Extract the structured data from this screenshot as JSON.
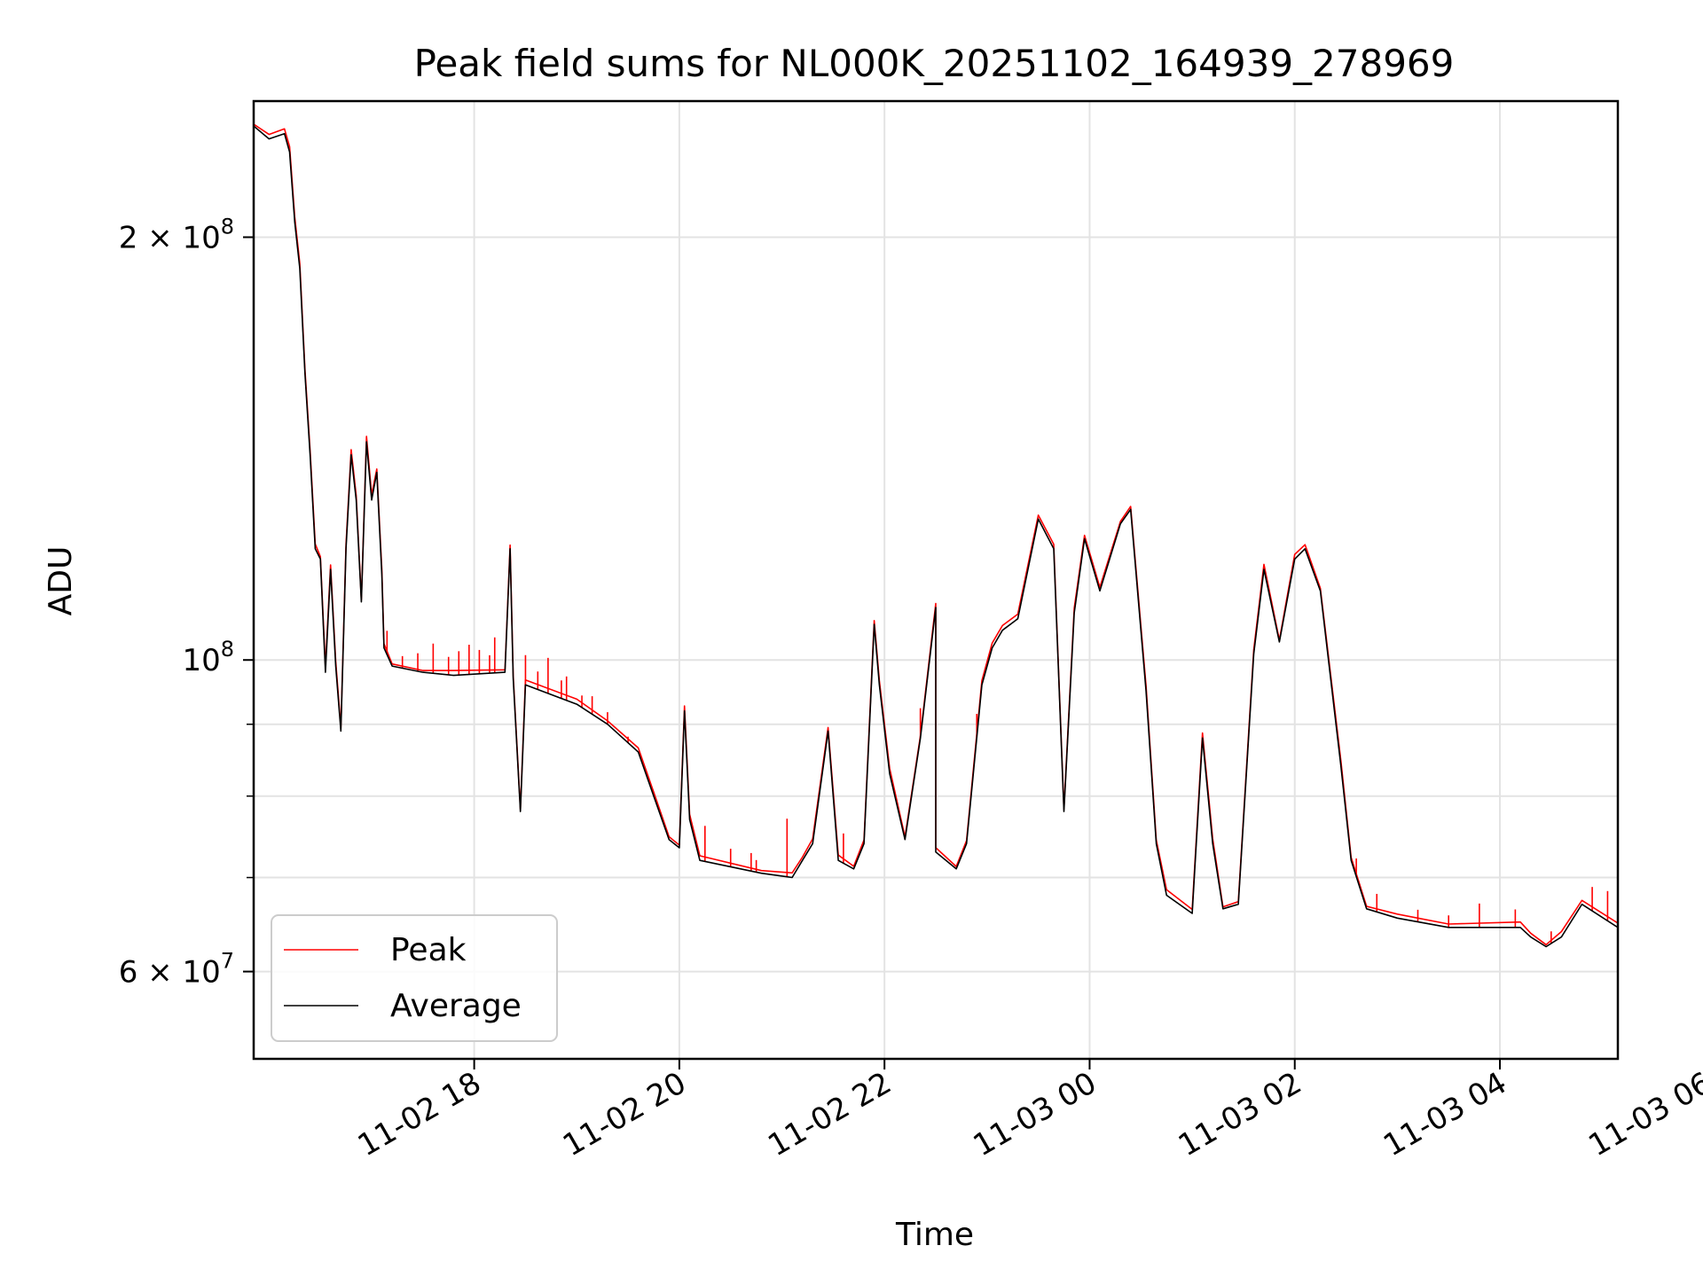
{
  "chart_data": {
    "type": "line",
    "title": "Peak field sums for NL000K_20251102_164939_278969",
    "xlabel": "Time",
    "ylabel": "ADU",
    "yscale": "log",
    "xlim": [
      -1.15,
      12.15
    ],
    "ylim": [
      52000000,
      250000000
    ],
    "x_unit": "hours since 11-02 17:00",
    "grid": true,
    "legend_position": "lower-left",
    "x_ticks": [
      {
        "value": 1,
        "label": "11-02 18"
      },
      {
        "value": 3,
        "label": "11-02 20"
      },
      {
        "value": 5,
        "label": "11-02 22"
      },
      {
        "value": 7,
        "label": "11-03 00"
      },
      {
        "value": 9,
        "label": "11-03 02"
      },
      {
        "value": 11,
        "label": "11-03 04"
      },
      {
        "value": 13,
        "label": "11-03 06"
      }
    ],
    "y_major_ticks": [
      {
        "value": 60000000,
        "label": "6 × 10",
        "exp": "7"
      },
      {
        "value": 100000000,
        "label": "10",
        "exp": "8"
      },
      {
        "value": 200000000,
        "label": "2 × 10",
        "exp": "8"
      }
    ],
    "y_minor_ticks": [
      70000000,
      80000000,
      90000000
    ],
    "series": [
      {
        "name": "Average",
        "color": "#000000",
        "points": [
          [
            -1.15,
            240000000
          ],
          [
            -1.0,
            235000000
          ],
          [
            -0.85,
            237000000
          ],
          [
            -0.8,
            230000000
          ],
          [
            -0.75,
            205000000
          ],
          [
            -0.7,
            190000000
          ],
          [
            -0.65,
            160000000
          ],
          [
            -0.6,
            140000000
          ],
          [
            -0.55,
            120000000
          ],
          [
            -0.5,
            118000000
          ],
          [
            -0.45,
            98000000
          ],
          [
            -0.4,
            116000000
          ],
          [
            -0.35,
            99000000
          ],
          [
            -0.3,
            89000000
          ],
          [
            -0.25,
            120000000
          ],
          [
            -0.2,
            140000000
          ],
          [
            -0.15,
            130000000
          ],
          [
            -0.1,
            110000000
          ],
          [
            -0.05,
            143000000
          ],
          [
            0.0,
            130000000
          ],
          [
            0.05,
            136000000
          ],
          [
            0.1,
            115000000
          ],
          [
            0.12,
            102000000
          ],
          [
            0.2,
            99000000
          ],
          [
            0.5,
            98000000
          ],
          [
            0.8,
            97500000
          ],
          [
            1.3,
            98000000
          ],
          [
            1.35,
            120000000
          ],
          [
            1.38,
            97000000
          ],
          [
            1.45,
            78000000
          ],
          [
            1.5,
            96000000
          ],
          [
            2.0,
            93000000
          ],
          [
            2.3,
            90000000
          ],
          [
            2.6,
            86000000
          ],
          [
            2.75,
            80000000
          ],
          [
            2.9,
            74500000
          ],
          [
            3.0,
            73500000
          ],
          [
            3.05,
            92000000
          ],
          [
            3.1,
            77000000
          ],
          [
            3.2,
            72000000
          ],
          [
            3.8,
            70500000
          ],
          [
            4.1,
            70000000
          ],
          [
            4.2,
            72000000
          ],
          [
            4.3,
            74000000
          ],
          [
            4.45,
            89000000
          ],
          [
            4.55,
            72000000
          ],
          [
            4.7,
            71000000
          ],
          [
            4.8,
            74000000
          ],
          [
            4.9,
            106000000
          ],
          [
            4.95,
            96000000
          ],
          [
            5.05,
            83000000
          ],
          [
            5.2,
            74500000
          ],
          [
            5.35,
            88000000
          ],
          [
            5.5,
            109000000
          ],
          [
            5.5,
            73000000
          ],
          [
            5.7,
            71000000
          ],
          [
            5.8,
            74000000
          ],
          [
            5.95,
            96000000
          ],
          [
            6.05,
            102000000
          ],
          [
            6.15,
            105000000
          ],
          [
            6.3,
            107000000
          ],
          [
            6.5,
            126000000
          ],
          [
            6.65,
            120000000
          ],
          [
            6.75,
            78000000
          ],
          [
            6.85,
            108000000
          ],
          [
            6.95,
            122000000
          ],
          [
            7.1,
            112000000
          ],
          [
            7.3,
            125000000
          ],
          [
            7.4,
            128000000
          ],
          [
            7.55,
            95000000
          ],
          [
            7.65,
            74000000
          ],
          [
            7.75,
            68000000
          ],
          [
            8.0,
            66000000
          ],
          [
            8.1,
            88000000
          ],
          [
            8.2,
            74000000
          ],
          [
            8.3,
            66500000
          ],
          [
            8.45,
            67000000
          ],
          [
            8.6,
            101000000
          ],
          [
            8.7,
            116000000
          ],
          [
            8.85,
            103000000
          ],
          [
            9.0,
            118000000
          ],
          [
            9.1,
            120000000
          ],
          [
            9.25,
            112000000
          ],
          [
            9.45,
            84000000
          ],
          [
            9.55,
            72000000
          ],
          [
            9.7,
            66500000
          ],
          [
            10.0,
            65500000
          ],
          [
            10.5,
            64500000
          ],
          [
            11.2,
            64500000
          ],
          [
            11.3,
            63500000
          ],
          [
            11.45,
            62500000
          ],
          [
            11.6,
            63500000
          ],
          [
            11.8,
            67000000
          ],
          [
            12.15,
            64500000
          ]
        ]
      }
    ]
  },
  "legend": {
    "items": [
      {
        "label": "Peak",
        "color": "#ff0000"
      },
      {
        "label": "Average",
        "color": "#000000"
      }
    ]
  }
}
